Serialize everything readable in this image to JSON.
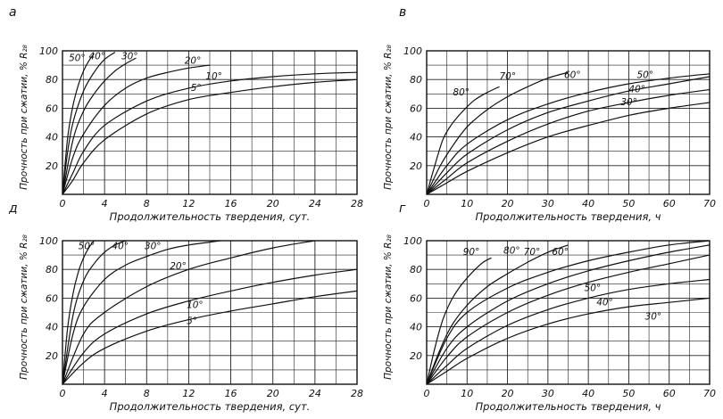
{
  "chart_data": [
    {
      "type": "line",
      "panel_letter": "а",
      "xlabel": "Продолжительность твердения, сут.",
      "ylabel": "Прочность при сжатии, % R₂₈",
      "xlim": [
        0,
        28
      ],
      "ylim": [
        0,
        100
      ],
      "xticks": [
        "0",
        "4",
        "8",
        "12",
        "16",
        "20",
        "24",
        "28"
      ],
      "yticks": [
        "20",
        "40",
        "60",
        "80",
        "100"
      ],
      "grid": true,
      "series": [
        {
          "name": "50°",
          "label": "50°",
          "x": [
            0,
            0.5,
            1,
            1.5,
            2,
            2.5,
            3
          ],
          "y": [
            0,
            40,
            62,
            76,
            86,
            93,
            98
          ]
        },
        {
          "name": "40°",
          "label": "40°",
          "x": [
            0,
            0.5,
            1,
            2,
            3,
            4,
            5
          ],
          "y": [
            0,
            30,
            50,
            72,
            85,
            94,
            99
          ]
        },
        {
          "name": "30°",
          "label": "30°",
          "x": [
            0,
            1,
            2,
            3,
            4,
            5,
            6,
            7
          ],
          "y": [
            0,
            38,
            58,
            70,
            79,
            86,
            91,
            95
          ]
        },
        {
          "name": "20°",
          "label": "20°",
          "x": [
            0,
            1,
            2,
            4,
            6,
            8,
            10,
            12,
            14
          ],
          "y": [
            0,
            26,
            42,
            62,
            74,
            81,
            85,
            88,
            90
          ]
        },
        {
          "name": "10°",
          "label": "10°",
          "x": [
            0,
            1,
            2,
            4,
            8,
            12,
            16,
            20,
            24,
            28
          ],
          "y": [
            0,
            15,
            30,
            48,
            65,
            74,
            79,
            82,
            84,
            85
          ]
        },
        {
          "name": "5°",
          "label": "5°",
          "x": [
            0,
            1,
            2,
            4,
            8,
            12,
            16,
            20,
            24,
            28
          ],
          "y": [
            0,
            10,
            22,
            38,
            56,
            66,
            71,
            75,
            78,
            80
          ]
        }
      ]
    },
    {
      "type": "line",
      "panel_letter": "в",
      "xlabel": "Продолжительность твердения, ч",
      "ylabel": "Прочность при сжатии, % R₂₈",
      "xlim": [
        0,
        70
      ],
      "ylim": [
        0,
        100
      ],
      "xticks": [
        "0",
        "10",
        "20",
        "30",
        "40",
        "50",
        "60",
        "70"
      ],
      "yticks": [
        "20",
        "40",
        "60",
        "80",
        "100"
      ],
      "grid": true,
      "series": [
        {
          "name": "80°",
          "label": "80°",
          "x": [
            0,
            2,
            4,
            6,
            8,
            10,
            12,
            15,
            18
          ],
          "y": [
            0,
            20,
            38,
            48,
            55,
            61,
            66,
            71,
            75
          ]
        },
        {
          "name": "70°",
          "label": "70°",
          "x": [
            0,
            3,
            6,
            10,
            15,
            20,
            25,
            30,
            35
          ],
          "y": [
            0,
            18,
            32,
            47,
            59,
            68,
            75,
            81,
            85
          ]
        },
        {
          "name": "60°",
          "label": "60°",
          "x": [
            0,
            5,
            10,
            20,
            30,
            40,
            50,
            60,
            70
          ],
          "y": [
            0,
            20,
            35,
            52,
            63,
            71,
            77,
            81,
            84
          ]
        },
        {
          "name": "50°",
          "label": "50°",
          "x": [
            0,
            5,
            10,
            20,
            30,
            40,
            50,
            60,
            70
          ],
          "y": [
            0,
            15,
            28,
            45,
            57,
            65,
            72,
            77,
            82
          ]
        },
        {
          "name": "40°",
          "label": "40°",
          "x": [
            0,
            5,
            10,
            20,
            30,
            40,
            50,
            60,
            70
          ],
          "y": [
            0,
            11,
            22,
            37,
            49,
            58,
            64,
            69,
            73
          ]
        },
        {
          "name": "30°",
          "label": "30°",
          "x": [
            0,
            5,
            10,
            20,
            30,
            40,
            50,
            60,
            70
          ],
          "y": [
            0,
            8,
            16,
            29,
            40,
            48,
            55,
            60,
            64
          ]
        }
      ]
    },
    {
      "type": "line",
      "panel_letter": "д",
      "xlabel": "Продолжительность твердения, сут.",
      "ylabel": "Прочность при сжатии, % R₂₈",
      "xlim": [
        0,
        28
      ],
      "ylim": [
        0,
        100
      ],
      "xticks": [
        "0",
        "4",
        "8",
        "12",
        "16",
        "20",
        "24",
        "28"
      ],
      "yticks": [
        "20",
        "40",
        "60",
        "80",
        "100"
      ],
      "grid": true,
      "series": [
        {
          "name": "50°",
          "label": "50°",
          "x": [
            0,
            0.5,
            1,
            1.5,
            2,
            2.5,
            3
          ],
          "y": [
            0,
            40,
            63,
            78,
            88,
            95,
            100
          ]
        },
        {
          "name": "40°",
          "label": "40°",
          "x": [
            0,
            1,
            2,
            3,
            4,
            5,
            6
          ],
          "y": [
            0,
            48,
            72,
            84,
            92,
            97,
            100
          ]
        },
        {
          "name": "30°",
          "label": "30°",
          "x": [
            0,
            1,
            2,
            4,
            6,
            8,
            10,
            12,
            14,
            15
          ],
          "y": [
            0,
            35,
            54,
            73,
            83,
            89,
            94,
            97,
            99,
            100
          ]
        },
        {
          "name": "20°",
          "label": "20°",
          "x": [
            0,
            2,
            4,
            8,
            12,
            16,
            20,
            24
          ],
          "y": [
            0,
            35,
            50,
            68,
            80,
            88,
            95,
            100
          ]
        },
        {
          "name": "10°",
          "label": "10°",
          "x": [
            0,
            2,
            4,
            8,
            12,
            16,
            20,
            24,
            28
          ],
          "y": [
            0,
            22,
            35,
            49,
            58,
            65,
            71,
            76,
            80
          ]
        },
        {
          "name": "5°",
          "label": "5°",
          "x": [
            0,
            2,
            4,
            8,
            12,
            16,
            20,
            24,
            28
          ],
          "y": [
            0,
            15,
            25,
            37,
            45,
            51,
            56,
            61,
            65
          ]
        }
      ]
    },
    {
      "type": "line",
      "panel_letter": "г",
      "xlabel": "Продолжительность твердения, ч",
      "ylabel": "Прочность при сжатии, % R₂₈",
      "xlim": [
        0,
        70
      ],
      "ylim": [
        0,
        100
      ],
      "xticks": [
        "0",
        "10",
        "20",
        "30",
        "40",
        "50",
        "60",
        "70"
      ],
      "yticks": [
        "20",
        "40",
        "60",
        "80",
        "100"
      ],
      "grid": true,
      "series": [
        {
          "name": "90°",
          "label": "90°",
          "x": [
            0,
            2,
            4,
            6,
            8,
            10,
            12,
            14,
            16
          ],
          "y": [
            0,
            25,
            45,
            58,
            67,
            74,
            80,
            85,
            88
          ]
        },
        {
          "name": "80°",
          "label": "80°",
          "x": [
            0,
            3,
            6,
            10,
            15,
            20,
            25,
            30,
            35
          ],
          "y": [
            0,
            22,
            40,
            55,
            68,
            77,
            85,
            92,
            97
          ]
        },
        {
          "name": "70°",
          "label": "70°",
          "x": [
            0,
            5,
            10,
            20,
            30,
            40,
            50,
            60,
            70
          ],
          "y": [
            0,
            32,
            50,
            67,
            78,
            86,
            92,
            97,
            100
          ]
        },
        {
          "name": "60°",
          "label": "60°",
          "x": [
            0,
            5,
            10,
            20,
            30,
            40,
            50,
            60,
            70
          ],
          "y": [
            0,
            25,
            40,
            58,
            70,
            79,
            86,
            92,
            97
          ]
        },
        {
          "name": "50°",
          "label": "50°",
          "x": [
            0,
            5,
            10,
            20,
            30,
            40,
            50,
            60,
            70
          ],
          "y": [
            0,
            19,
            33,
            50,
            62,
            71,
            78,
            84,
            90
          ]
        },
        {
          "name": "40°",
          "label": "40°",
          "x": [
            0,
            5,
            10,
            20,
            30,
            40,
            50,
            60,
            70
          ],
          "y": [
            0,
            13,
            25,
            41,
            52,
            60,
            66,
            70,
            73
          ]
        },
        {
          "name": "30°",
          "label": "30°",
          "x": [
            0,
            5,
            10,
            20,
            30,
            40,
            50,
            60,
            70
          ],
          "y": [
            0,
            9,
            18,
            32,
            42,
            49,
            54,
            57,
            60
          ]
        }
      ]
    }
  ]
}
